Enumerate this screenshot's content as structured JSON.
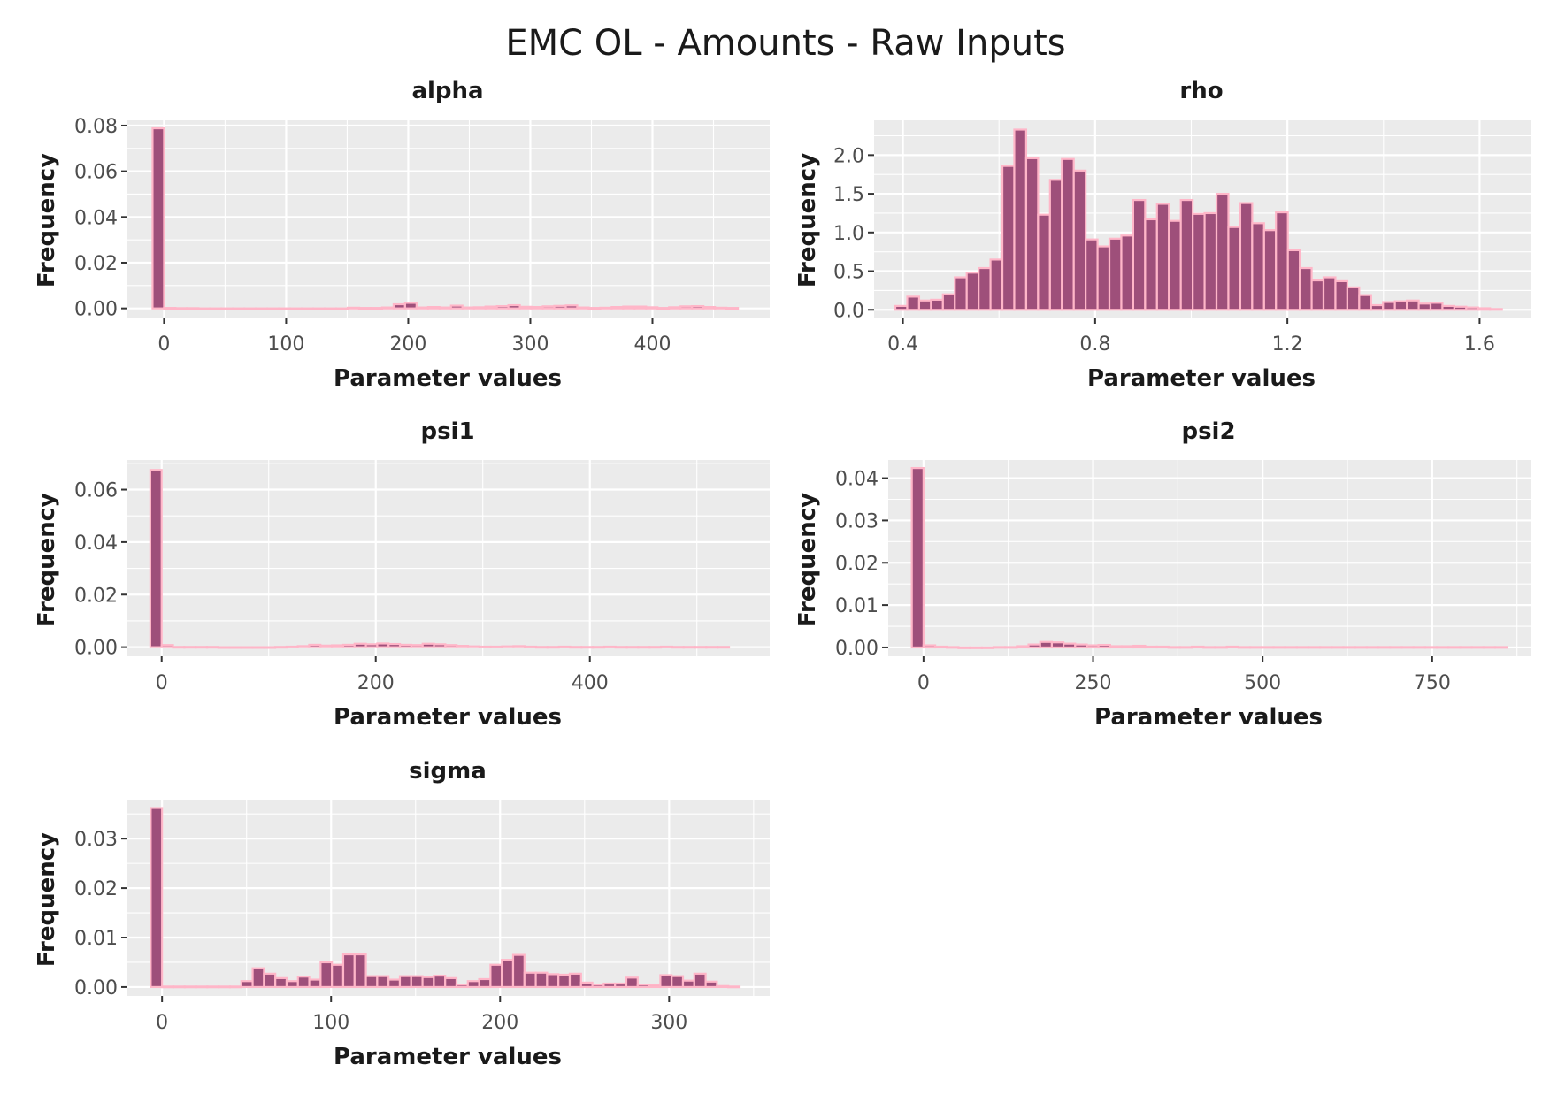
{
  "title": "EMC OL - Amounts - Raw Inputs",
  "colors": {
    "bar_fill": "#9e4f7a",
    "bar_outline": "#ffb6c8",
    "panel_background": "#ebebeb",
    "grid": "#ffffff"
  },
  "chart_data": [
    {
      "type": "bar",
      "title": "alpha",
      "xlabel": "Parameter values",
      "ylabel": "Frequency",
      "grid": true,
      "xlim": [
        -30,
        496
      ],
      "ylim": [
        -0.004,
        0.0823
      ],
      "x_ticks": [
        0,
        100,
        200,
        300,
        400
      ],
      "x_tick_labels": [
        "0",
        "100",
        "200",
        "300",
        "400"
      ],
      "y_ticks": [
        0.0,
        0.02,
        0.04,
        0.06,
        0.08
      ],
      "y_tick_labels": [
        "0.00",
        "0.02",
        "0.04",
        "0.06",
        "0.08"
      ],
      "bin_width": 9.4,
      "x": [
        -4.7,
        4.7,
        14.1,
        23.5,
        32.9,
        42.3,
        51.7,
        61.1,
        70.5,
        79.9,
        89.3,
        98.7,
        108.1,
        117.5,
        126.9,
        136.3,
        145.7,
        155.1,
        164.5,
        173.9,
        183.3,
        192.7,
        202.1,
        211.5,
        220.9,
        230.3,
        239.7,
        249.1,
        258.5,
        267.9,
        277.3,
        286.7,
        296.1,
        305.5,
        314.9,
        324.3,
        333.7,
        343.1,
        352.5,
        361.9,
        371.3,
        380.7,
        390.1,
        399.5,
        408.9,
        418.3,
        427.7,
        437.1,
        446.5,
        455.9,
        465.3
      ],
      "values": [
        0.0788,
        0.0002,
        0.0001,
        0.0001,
        0,
        0,
        0,
        0,
        0,
        0,
        0,
        0,
        0,
        0,
        0,
        0,
        0,
        0.0003,
        0.0002,
        0.0002,
        0.0004,
        0.0018,
        0.0024,
        0.0004,
        0.0006,
        0.0004,
        0.0012,
        0.0004,
        0.0005,
        0.0008,
        0.001,
        0.0014,
        0.0007,
        0.0006,
        0.0009,
        0.0011,
        0.0013,
        0.0004,
        0.0002,
        0.0003,
        0.0006,
        0.0008,
        0.0008,
        0.0005,
        0.0002,
        0.0005,
        0.0009,
        0.001,
        0.0006,
        0.0003,
        0.0002
      ]
    },
    {
      "type": "bar",
      "title": "rho",
      "xlabel": "Parameter values",
      "ylabel": "Frequency",
      "grid": true,
      "xlim": [
        0.34,
        1.706
      ],
      "ylim": [
        -0.1,
        2.45
      ],
      "x_ticks": [
        0.4,
        0.8,
        1.2,
        1.6
      ],
      "x_tick_labels": [
        "0.4",
        "0.8",
        "1.2",
        "1.6"
      ],
      "y_ticks": [
        0.0,
        0.5,
        1.0,
        1.5,
        2.0
      ],
      "y_tick_labels": [
        "0.0",
        "0.5",
        "1.0",
        "1.5",
        "2.0"
      ],
      "bin_width": 0.02475,
      "x": [
        0.3966,
        0.4214,
        0.4461,
        0.4709,
        0.4956,
        0.5204,
        0.5451,
        0.5699,
        0.5946,
        0.6194,
        0.6441,
        0.6689,
        0.6936,
        0.7184,
        0.7431,
        0.7679,
        0.7926,
        0.8174,
        0.8421,
        0.8669,
        0.8916,
        0.9164,
        0.9411,
        0.9659,
        0.9906,
        1.0154,
        1.0401,
        1.0649,
        1.0896,
        1.1144,
        1.1391,
        1.1639,
        1.1886,
        1.2134,
        1.2381,
        1.2629,
        1.2876,
        1.3124,
        1.3371,
        1.3619,
        1.3866,
        1.4114,
        1.4361,
        1.4609,
        1.4856,
        1.5104,
        1.5351,
        1.5599,
        1.5846,
        1.6094,
        1.6341
      ],
      "values": [
        0.05,
        0.17,
        0.12,
        0.13,
        0.2,
        0.42,
        0.48,
        0.54,
        0.65,
        1.86,
        2.33,
        1.96,
        1.23,
        1.68,
        1.95,
        1.8,
        0.91,
        0.82,
        0.92,
        0.96,
        1.42,
        1.17,
        1.37,
        1.15,
        1.42,
        1.24,
        1.25,
        1.5,
        1.07,
        1.38,
        1.12,
        1.03,
        1.26,
        0.77,
        0.54,
        0.38,
        0.42,
        0.37,
        0.29,
        0.19,
        0.06,
        0.1,
        0.11,
        0.12,
        0.08,
        0.09,
        0.05,
        0.04,
        0.03,
        0.02,
        0.01
      ]
    },
    {
      "type": "bar",
      "title": "psi1",
      "xlabel": "Parameter values",
      "ylabel": "Frequency",
      "grid": true,
      "xlim": [
        -32,
        568
      ],
      "ylim": [
        -0.0035,
        0.0713
      ],
      "x_ticks": [
        0,
        200,
        400
      ],
      "x_tick_labels": [
        "0",
        "200",
        "400"
      ],
      "y_ticks": [
        0.0,
        0.02,
        0.04,
        0.06
      ],
      "y_tick_labels": [
        "0.00",
        "0.02",
        "0.04",
        "0.06"
      ],
      "bin_width": 10.6,
      "x": [
        -5.3,
        5.3,
        15.9,
        26.5,
        37.1,
        47.7,
        58.3,
        68.9,
        79.5,
        90.1,
        100.7,
        111.3,
        121.9,
        132.5,
        143.1,
        153.7,
        164.3,
        174.9,
        185.5,
        196.1,
        206.7,
        217.3,
        227.9,
        238.5,
        249.1,
        259.7,
        270.3,
        280.9,
        291.5,
        302.1,
        312.7,
        323.3,
        333.9,
        344.5,
        355.1,
        365.7,
        376.3,
        386.9,
        397.5,
        408.1,
        418.7,
        429.3,
        439.9,
        450.5,
        461.1,
        471.7,
        482.3,
        492.9,
        503.5,
        514.1,
        524.7
      ],
      "values": [
        0.0675,
        0.0008,
        0.0001,
        0.0001,
        0.0001,
        0.0001,
        0,
        0,
        0,
        0,
        0,
        0.0001,
        0.0002,
        0.0004,
        0.0009,
        0.0006,
        0.0007,
        0.0009,
        0.0013,
        0.0011,
        0.0014,
        0.0012,
        0.0009,
        0.0008,
        0.0013,
        0.0011,
        0.0008,
        0.0005,
        0.0003,
        0.0002,
        0.0002,
        0.0003,
        0.0004,
        0.0002,
        0.0001,
        0.0001,
        0.0002,
        0.0001,
        0.0001,
        0.0001,
        0.0002,
        0.0001,
        0.0001,
        0.0001,
        0.0001,
        0.0002,
        0.0001,
        0.0001,
        0.0001,
        0.0001,
        0.0001
      ]
    },
    {
      "type": "bar",
      "title": "psi2",
      "xlabel": "Parameter values",
      "ylabel": "Frequency",
      "grid": true,
      "xlim": [
        -52,
        895
      ],
      "ylim": [
        -0.0021,
        0.0443
      ],
      "x_ticks": [
        0,
        250,
        500,
        750
      ],
      "x_tick_labels": [
        "0",
        "250",
        "500",
        "750"
      ],
      "y_ticks": [
        0.0,
        0.01,
        0.02,
        0.03,
        0.04
      ],
      "y_tick_labels": [
        "0.00",
        "0.01",
        "0.02",
        "0.03",
        "0.04"
      ],
      "bin_width": 17.2,
      "x": [
        -8.6,
        8.6,
        25.8,
        43,
        60.2,
        77.4,
        94.6,
        111.8,
        129,
        146.2,
        163.4,
        180.6,
        197.8,
        215,
        232.2,
        249.4,
        266.6,
        283.8,
        301,
        318.2,
        335.4,
        352.6,
        369.8,
        387,
        404.2,
        421.4,
        438.6,
        455.8,
        473,
        490.2,
        507.4,
        524.6,
        541.8,
        559,
        576.2,
        593.4,
        610.6,
        627.8,
        645,
        662.2,
        679.4,
        696.6,
        713.8,
        731,
        748.2,
        765.4,
        782.6,
        799.8,
        817,
        834.2,
        851.4
      ],
      "values": [
        0.0424,
        0.0005,
        0.0002,
        0.0001,
        0,
        0,
        0,
        0.0001,
        0.0001,
        0.0003,
        0.0007,
        0.0013,
        0.0012,
        0.0009,
        0.0007,
        0.0005,
        0.0006,
        0.0003,
        0.0003,
        0.0004,
        0.0002,
        0.0002,
        0.0001,
        0.0001,
        0.0002,
        0.0001,
        0.0001,
        0.0002,
        0.0001,
        0.0001,
        0.0001,
        0.0001,
        0.0001,
        0.0001,
        0.0001,
        0.0001,
        0.0001,
        0.0001,
        0.0001,
        0.0001,
        0.0001,
        0.0001,
        0.0001,
        0.0001,
        0.0001,
        0.0001,
        0.0001,
        0.0001,
        0.0001,
        0.0001,
        0.0001
      ]
    },
    {
      "type": "bar",
      "title": "sigma",
      "xlabel": "Parameter values",
      "ylabel": "Frequency",
      "grid": true,
      "xlim": [
        -20.5,
        359.5
      ],
      "ylim": [
        -0.0018,
        0.0379
      ],
      "x_ticks": [
        0,
        100,
        200,
        300
      ],
      "x_tick_labels": [
        "0",
        "100",
        "200",
        "300"
      ],
      "y_ticks": [
        0.0,
        0.01,
        0.02,
        0.03
      ],
      "y_tick_labels": [
        "0.00",
        "0.01",
        "0.02",
        "0.03"
      ],
      "bin_width": 6.7,
      "x": [
        -3.35,
        3.35,
        10.05,
        16.75,
        23.45,
        30.15,
        36.85,
        43.55,
        50.25,
        56.95,
        63.65,
        70.35,
        77.05,
        83.75,
        90.45,
        97.15,
        103.85,
        110.55,
        117.25,
        123.95,
        130.65,
        137.35,
        144.05,
        150.75,
        157.45,
        164.15,
        170.85,
        177.55,
        184.25,
        190.95,
        197.65,
        204.35,
        211.05,
        217.75,
        224.45,
        231.15,
        237.85,
        244.55,
        251.25,
        257.95,
        264.65,
        271.35,
        278.05,
        284.75,
        291.45,
        298.15,
        304.85,
        311.55,
        318.25,
        324.95,
        331.65,
        338.35
      ],
      "values": [
        0.0362,
        0.0001,
        0.0001,
        0.0001,
        0.0001,
        0.0001,
        0.0001,
        0.0001,
        0.0012,
        0.0038,
        0.0027,
        0.0018,
        0.0012,
        0.0021,
        0.0015,
        0.005,
        0.0045,
        0.0066,
        0.0066,
        0.0022,
        0.0022,
        0.0015,
        0.0022,
        0.0022,
        0.002,
        0.0023,
        0.0018,
        0.0005,
        0.0012,
        0.0016,
        0.0045,
        0.0055,
        0.0065,
        0.0029,
        0.0029,
        0.0026,
        0.0025,
        0.0027,
        0.0009,
        0.0005,
        0.0007,
        0.0007,
        0.0019,
        0.0005,
        0.0004,
        0.0024,
        0.0022,
        0.0013,
        0.0027,
        0.0011,
        0.0002,
        0.0001
      ]
    }
  ]
}
